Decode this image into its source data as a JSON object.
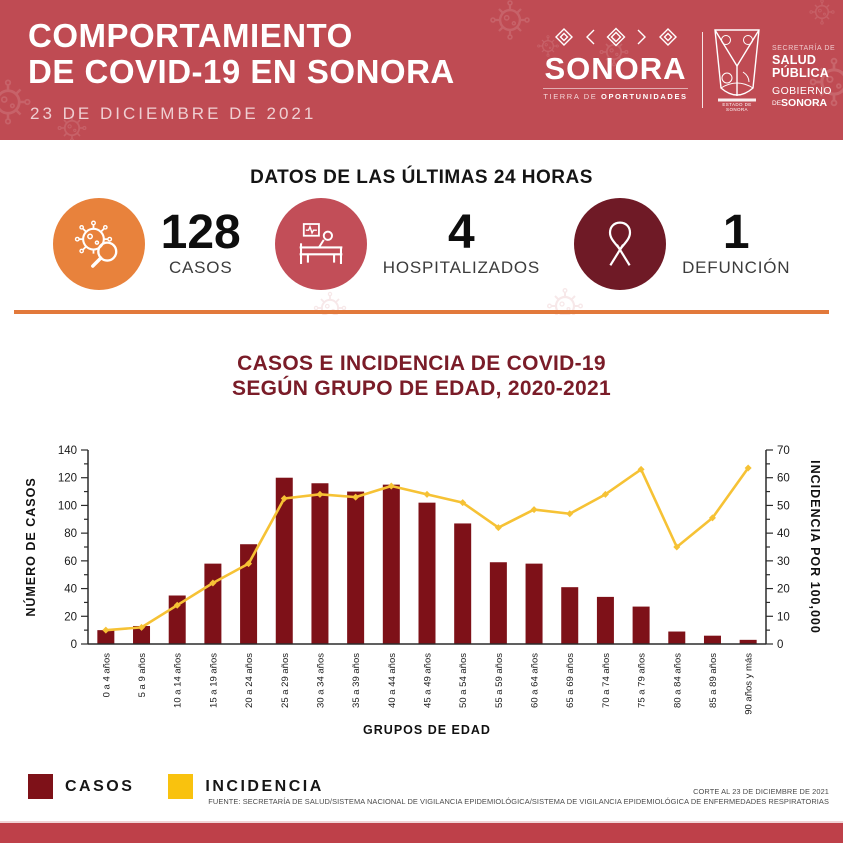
{
  "header": {
    "title_line1": "COMPORTAMIENTO",
    "title_line2": "DE COVID-19 EN SONORA",
    "date": "23 DE DICIEMBRE DE 2021",
    "bg_color": "#BF4B53",
    "brand": {
      "name": "SONORA",
      "tagline_light": "TIERRA DE",
      "tagline_bold": "OPORTUNIDADES",
      "seal_caption": "ESTADO DE SONORA"
    },
    "ministry": {
      "dept_small": "SECRETARÍA DE",
      "dept_bold": "SALUD PÚBLICA",
      "gov_line1": "GOBIERNO",
      "gov_de": "DE",
      "gov_bold": "SONORA"
    }
  },
  "stats": {
    "title": "DATOS DE LAS ÚLTIMAS 24 HORAS",
    "items": [
      {
        "value": "128",
        "label": "CASOS",
        "icon": "virus-search-icon",
        "circle_color": "#E8823C"
      },
      {
        "value": "4",
        "label": "HOSPITALIZADOS",
        "icon": "hospital-bed-icon",
        "circle_color": "#C24E58"
      },
      {
        "value": "1",
        "label": "DEFUNCIÓN",
        "icon": "mourning-ribbon-icon",
        "circle_color": "#6F1A26"
      }
    ]
  },
  "divider_color": "#E2793B",
  "chart": {
    "title_line1": "CASOS E INCIDENCIA DE COVID-19",
    "title_line2": "SEGÚN GRUPO DE EDAD, 2020-2021",
    "title_color": "#7A1C28"
  },
  "chart_data": {
    "type": "bar",
    "subtype": "bar+line dual-axis combo",
    "title": "CASOS E INCIDENCIA DE COVID-19 SEGÚN GRUPO DE EDAD, 2020-2021",
    "categories": [
      "0 a 4 años",
      "5 a 9 años",
      "10 a 14 años",
      "15 a 19 años",
      "20 a 24 años",
      "25 a 29 años",
      "30 a 34 años",
      "35 a 39 años",
      "40 a 44 años",
      "45 a 49 años",
      "50 a 54 años",
      "55 a 59 años",
      "60 a 64 años",
      "65 a 69 años",
      "70 a 74 años",
      "75 a 79 años",
      "80 a 84 años",
      "85 a 89 años",
      "90 años y más"
    ],
    "series": [
      {
        "name": "CASOS",
        "type": "bar",
        "axis": "left",
        "color": "#7E1118",
        "values": [
          10,
          13,
          35,
          58,
          72,
          120,
          116,
          110,
          115,
          102,
          87,
          59,
          58,
          41,
          34,
          27,
          9,
          6,
          3
        ]
      },
      {
        "name": "INCIDENCIA",
        "type": "line",
        "axis": "right",
        "color": "#F6C235",
        "values": [
          5,
          6,
          14,
          22,
          29,
          52.5,
          54,
          53,
          57,
          54,
          51,
          42,
          48.5,
          47,
          54,
          63,
          35,
          45.5,
          63.5
        ]
      }
    ],
    "xlabel": "GRUPOS DE EDAD",
    "ylabel_left": "NÚMERO DE CASOS",
    "ylabel_right": "INCIDENCIA POR 100,000",
    "ylim_left": [
      0,
      140
    ],
    "ytick_left": 20,
    "yminor_left": 10,
    "ylim_right": [
      0,
      70
    ],
    "ytick_right": 10,
    "yminor_right": 5,
    "grid": false,
    "legend_position": "bottom-left"
  },
  "legend": {
    "items": [
      {
        "label": "CASOS",
        "color": "#7E1118"
      },
      {
        "label": "INCIDENCIA",
        "color": "#F9C20E"
      }
    ]
  },
  "footer": {
    "corte": "CORTE AL 23 DE DICIEMBRE DE 2021",
    "fuente": "FUENTE: SECRETARÍA DE SALUD/SISTEMA NACIONAL DE VIGILANCIA EPIDEMIOLÓGICA/SISTEMA DE VIGILANCIA EPIDEMIOLÓGICA DE ENFERMEDADES RESPIRATORIAS",
    "bar_color": "#BE4049"
  }
}
